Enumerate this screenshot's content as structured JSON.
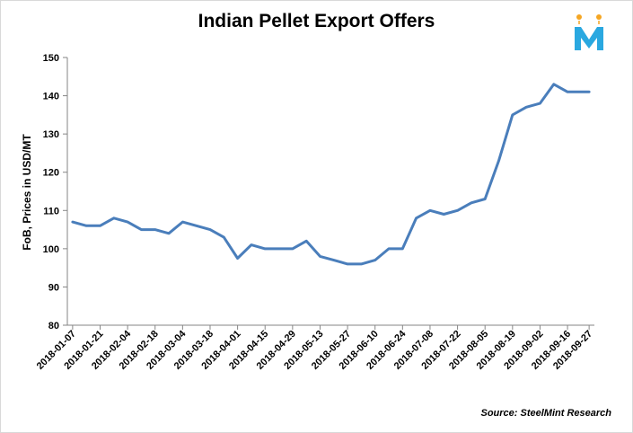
{
  "logo": {
    "letter": "M",
    "icon": "steelmint-logo-icon",
    "color": "#2aa8e0",
    "accent": "#f5a623"
  },
  "source_text": "Source: SteelMint Research",
  "line_color": "#4a7ebb",
  "chart_data": {
    "type": "line",
    "title": "Indian Pellet Export Offers",
    "ylabel": "FoB, Prices in USD/MT",
    "xlabel": "",
    "ylim": [
      80,
      150
    ],
    "yticks": [
      80,
      90,
      100,
      110,
      120,
      130,
      140,
      150
    ],
    "grid": false,
    "x": [
      "2018-01-07",
      "2018-01-14",
      "2018-01-21",
      "2018-01-28",
      "2018-02-04",
      "2018-02-11",
      "2018-02-18",
      "2018-02-25",
      "2018-03-04",
      "2018-03-11",
      "2018-03-18",
      "2018-03-25",
      "2018-04-01",
      "2018-04-08",
      "2018-04-15",
      "2018-04-22",
      "2018-04-29",
      "2018-05-06",
      "2018-05-13",
      "2018-05-20",
      "2018-05-27",
      "2018-06-03",
      "2018-06-10",
      "2018-06-17",
      "2018-06-24",
      "2018-07-01",
      "2018-07-08",
      "2018-07-15",
      "2018-07-22",
      "2018-07-29",
      "2018-08-05",
      "2018-08-12",
      "2018-08-19",
      "2018-08-26",
      "2018-09-02",
      "2018-09-09",
      "2018-09-16",
      "2018-09-27"
    ],
    "xtick_labels": [
      "2018-01-07",
      "2018-01-21",
      "2018-02-04",
      "2018-02-18",
      "2018-03-04",
      "2018-03-18",
      "2018-04-01",
      "2018-04-15",
      "2018-04-29",
      "2018-05-13",
      "2018-05-27",
      "2018-06-10",
      "2018-06-24",
      "2018-07-08",
      "2018-07-22",
      "2018-08-05",
      "2018-08-19",
      "2018-09-02",
      "2018-09-16",
      "2018-09-27"
    ],
    "series": [
      {
        "values": [
          107,
          106,
          106,
          108,
          107,
          105,
          105,
          104,
          107,
          106,
          105,
          103,
          97.5,
          101,
          100,
          100,
          100,
          102,
          98,
          97,
          96,
          96,
          97,
          100,
          100,
          108,
          110,
          109,
          110,
          112,
          113,
          123,
          135,
          137,
          138,
          143,
          141,
          141
        ]
      }
    ]
  }
}
